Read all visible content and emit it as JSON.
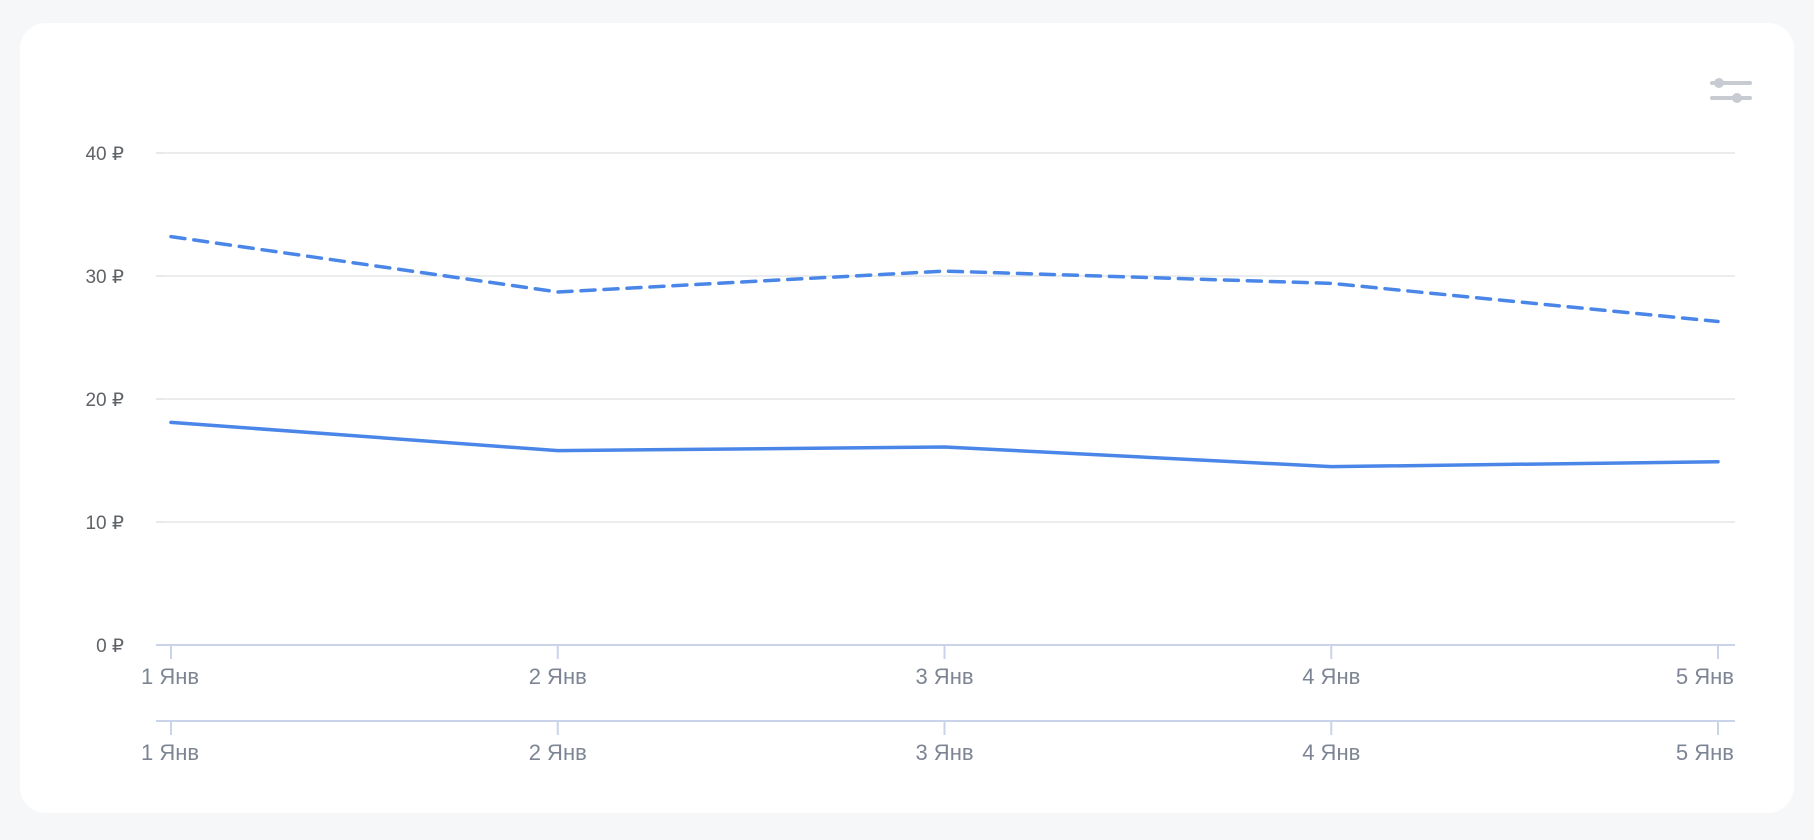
{
  "colors": {
    "series": "#4a86e8",
    "grid": "#e3e5e8",
    "axis": "#c9d3ea",
    "icon": "#c8ccd2"
  },
  "toolbar": {
    "settings_icon": "sliders-icon"
  },
  "chart_data": {
    "type": "line",
    "categories": [
      "1 Янв",
      "2 Янв",
      "3 Янв",
      "4 Янв",
      "5 Янв"
    ],
    "series": [
      {
        "style": "dashed",
        "values": [
          33.2,
          28.7,
          30.4,
          29.4,
          26.3
        ]
      },
      {
        "style": "solid",
        "values": [
          18.1,
          15.8,
          16.1,
          14.5,
          14.9
        ]
      }
    ],
    "ylim": [
      0,
      40
    ],
    "yticks": [
      0,
      10,
      20,
      30,
      40
    ],
    "ytick_labels": [
      "0 ₽",
      "10 ₽",
      "20 ₽",
      "30 ₽",
      "40 ₽"
    ],
    "grid": true,
    "secondary_axis_labels": [
      "1 Янв",
      "2 Янв",
      "3 Янв",
      "4 Янв",
      "5 Янв"
    ]
  }
}
